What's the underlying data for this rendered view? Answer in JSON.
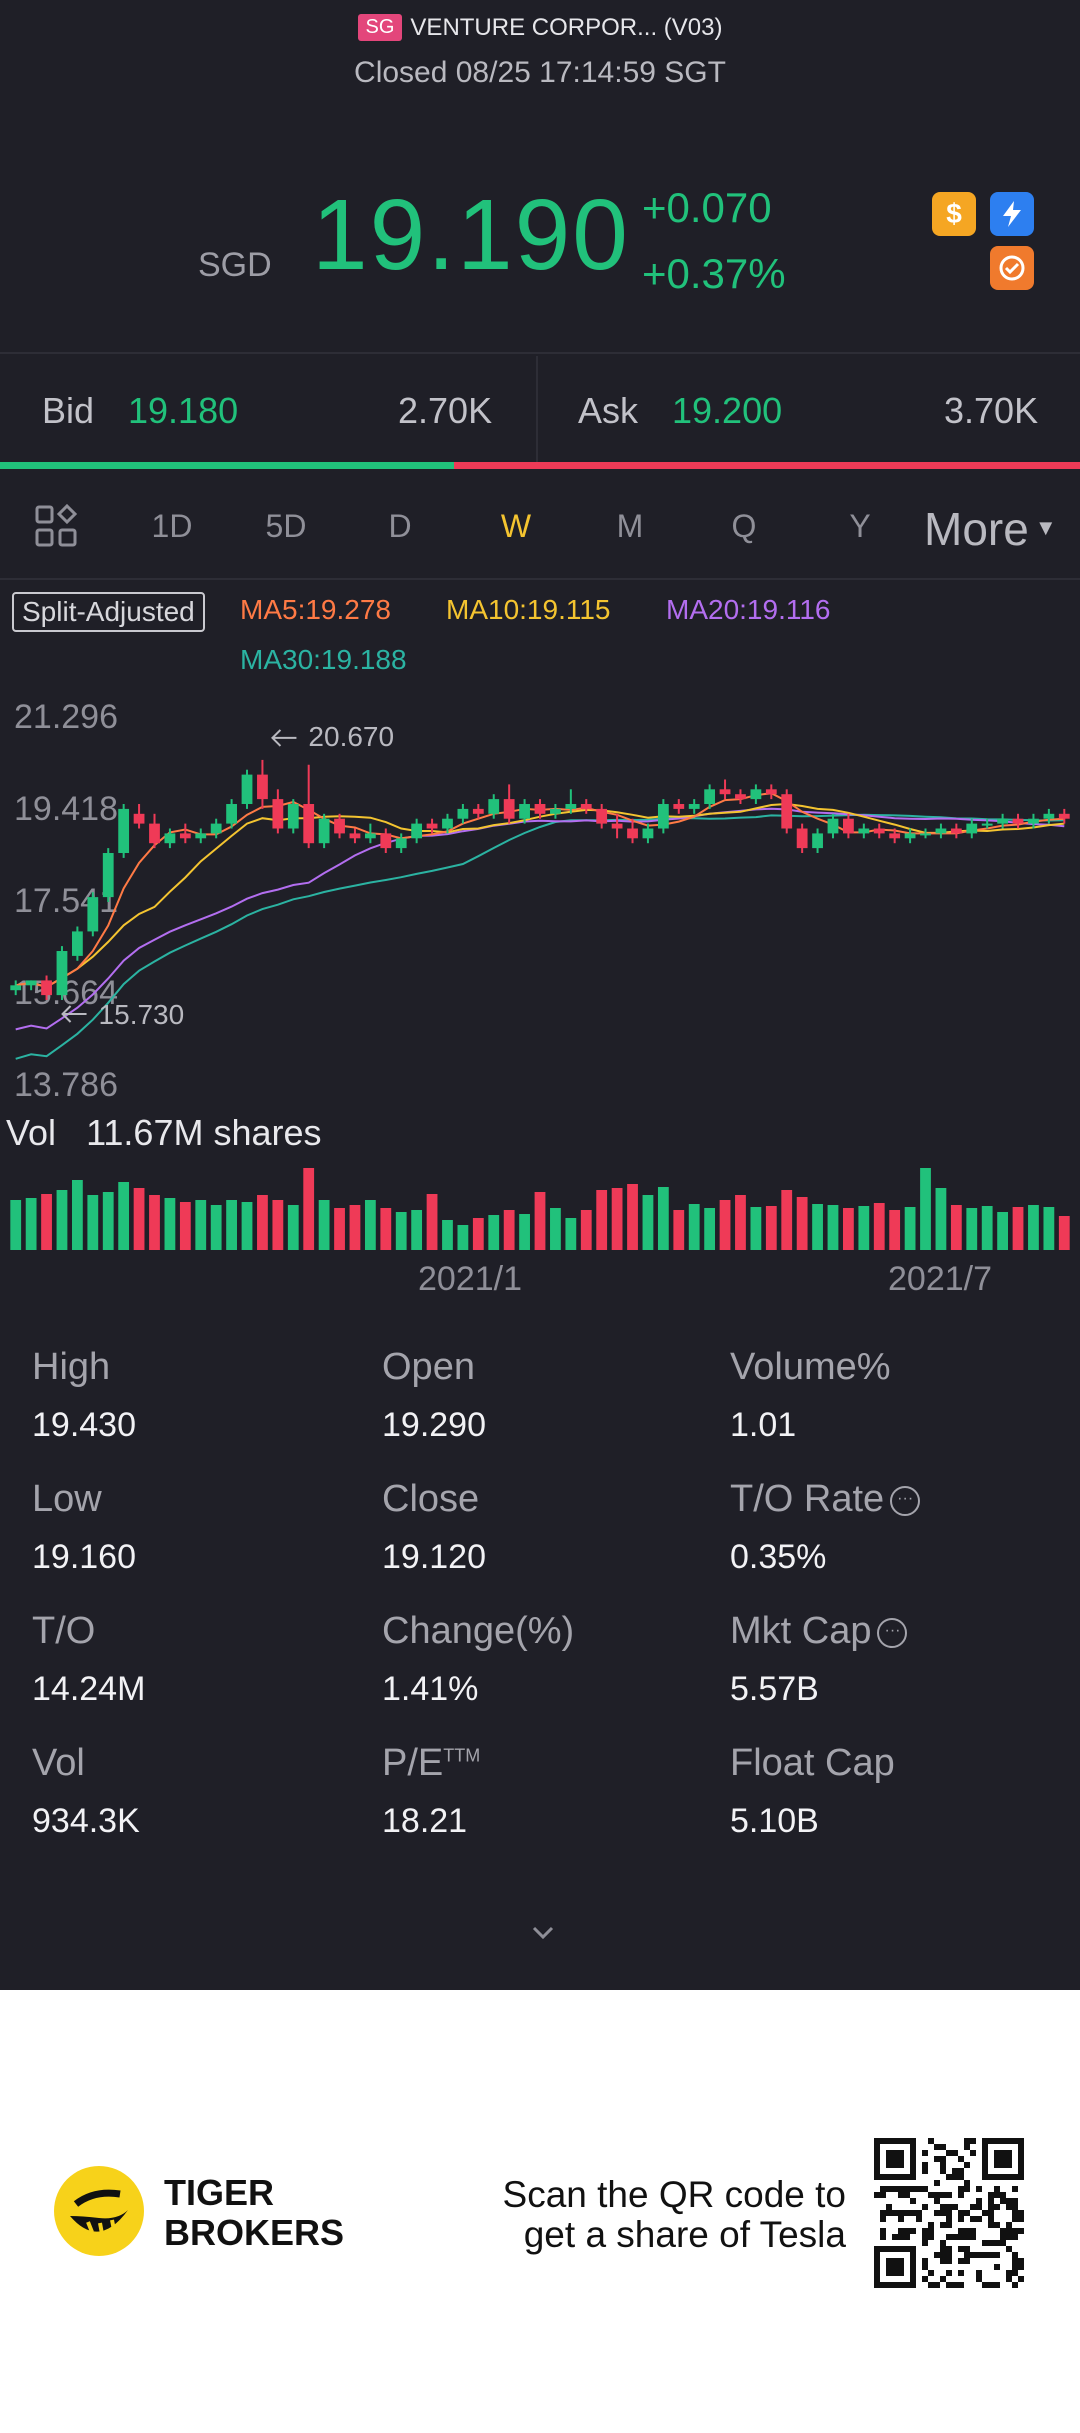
{
  "header": {
    "market_badge": "SG",
    "title": "VENTURE CORPOR... (V03)",
    "status": "Closed 08/25 17:14:59 SGT",
    "currency": "SGD",
    "price": "19.190",
    "change": "+0.070",
    "change_pct": "+0.37%",
    "icons": [
      "dollar-icon",
      "lightning-icon",
      "swap-icon"
    ]
  },
  "quote": {
    "bid_label": "Bid",
    "bid_price": "19.180",
    "bid_size": "2.70K",
    "ask_label": "Ask",
    "ask_price": "19.200",
    "ask_size": "3.70K",
    "bid_ratio": 0.42
  },
  "tabs": {
    "items": [
      "1D",
      "5D",
      "D",
      "W",
      "M",
      "Q",
      "Y"
    ],
    "active": "W",
    "more": "More"
  },
  "indicators": {
    "split": "Split-Adjusted",
    "ma5": "MA5:19.278",
    "ma10": "MA10:19.115",
    "ma20": "MA20:19.116",
    "ma30": "MA30:19.188"
  },
  "chart_data": {
    "type": "candlestick",
    "y_ticks": [
      "21.296",
      "19.418",
      "17.541",
      "15.664",
      "13.786"
    ],
    "ylim": [
      13.786,
      21.296
    ],
    "max_marker": "20.670",
    "min_marker": "15.730",
    "x_ticks": [
      "2021/1",
      "2021/7"
    ],
    "vol_label": "Vol",
    "vol_value": "11.67M shares",
    "colors": {
      "up": "#21c17b",
      "down": "#ef3a57",
      "ma5": "#ff7a45",
      "ma10": "#f4c430",
      "ma20": "#b36ef0",
      "ma30": "#2bb3a2"
    },
    "candles": [
      [
        15.7,
        15.9,
        15.6,
        15.8
      ],
      [
        15.8,
        15.9,
        15.7,
        15.9
      ],
      [
        15.9,
        16.0,
        15.5,
        15.6
      ],
      [
        15.6,
        16.6,
        15.5,
        16.5
      ],
      [
        16.4,
        17.0,
        16.3,
        16.9
      ],
      [
        16.9,
        17.7,
        16.8,
        17.6
      ],
      [
        17.6,
        18.6,
        17.5,
        18.5
      ],
      [
        18.5,
        19.5,
        18.4,
        19.4
      ],
      [
        19.3,
        19.5,
        19.0,
        19.1
      ],
      [
        19.1,
        19.3,
        18.6,
        18.7
      ],
      [
        18.7,
        19.0,
        18.6,
        18.9
      ],
      [
        18.9,
        19.1,
        18.7,
        18.8
      ],
      [
        18.8,
        19.0,
        18.7,
        18.9
      ],
      [
        18.9,
        19.2,
        18.8,
        19.1
      ],
      [
        19.1,
        19.6,
        19.0,
        19.5
      ],
      [
        19.5,
        20.2,
        19.4,
        20.1
      ],
      [
        20.1,
        20.4,
        19.4,
        19.6
      ],
      [
        19.6,
        19.8,
        18.9,
        19.0
      ],
      [
        19.0,
        19.6,
        18.9,
        19.5
      ],
      [
        19.5,
        20.3,
        18.6,
        18.7
      ],
      [
        18.7,
        19.3,
        18.6,
        19.2
      ],
      [
        19.2,
        19.3,
        18.8,
        18.9
      ],
      [
        18.9,
        19.0,
        18.7,
        18.8
      ],
      [
        18.8,
        19.1,
        18.7,
        18.9
      ],
      [
        18.9,
        19.0,
        18.5,
        18.6
      ],
      [
        18.6,
        18.9,
        18.5,
        18.8
      ],
      [
        18.8,
        19.2,
        18.7,
        19.1
      ],
      [
        19.1,
        19.2,
        18.9,
        19.0
      ],
      [
        19.0,
        19.3,
        18.9,
        19.2
      ],
      [
        19.2,
        19.5,
        19.1,
        19.4
      ],
      [
        19.4,
        19.5,
        19.2,
        19.3
      ],
      [
        19.3,
        19.7,
        19.2,
        19.6
      ],
      [
        19.6,
        19.9,
        19.1,
        19.2
      ],
      [
        19.2,
        19.6,
        19.1,
        19.5
      ],
      [
        19.5,
        19.6,
        19.2,
        19.3
      ],
      [
        19.3,
        19.5,
        19.2,
        19.4
      ],
      [
        19.4,
        19.8,
        19.3,
        19.5
      ],
      [
        19.5,
        19.6,
        19.3,
        19.4
      ],
      [
        19.4,
        19.5,
        19.0,
        19.1
      ],
      [
        19.1,
        19.3,
        18.8,
        19.0
      ],
      [
        19.0,
        19.2,
        18.7,
        18.8
      ],
      [
        18.8,
        19.1,
        18.7,
        19.0
      ],
      [
        19.0,
        19.6,
        18.9,
        19.5
      ],
      [
        19.5,
        19.6,
        19.3,
        19.4
      ],
      [
        19.4,
        19.6,
        19.3,
        19.5
      ],
      [
        19.5,
        19.9,
        19.4,
        19.8
      ],
      [
        19.8,
        20.0,
        19.6,
        19.7
      ],
      [
        19.7,
        19.8,
        19.5,
        19.6
      ],
      [
        19.6,
        19.9,
        19.5,
        19.8
      ],
      [
        19.8,
        19.9,
        19.6,
        19.7
      ],
      [
        19.7,
        19.8,
        18.9,
        19.0
      ],
      [
        19.0,
        19.1,
        18.5,
        18.6
      ],
      [
        18.6,
        19.0,
        18.5,
        18.9
      ],
      [
        18.9,
        19.3,
        18.8,
        19.2
      ],
      [
        19.2,
        19.3,
        18.8,
        18.9
      ],
      [
        18.9,
        19.1,
        18.8,
        19.0
      ],
      [
        19.0,
        19.1,
        18.8,
        18.9
      ],
      [
        18.9,
        19.0,
        18.7,
        18.8
      ],
      [
        18.8,
        19.0,
        18.7,
        18.9
      ],
      [
        18.9,
        19.0,
        18.8,
        18.9
      ],
      [
        18.9,
        19.1,
        18.8,
        19.0
      ],
      [
        19.0,
        19.1,
        18.8,
        18.9
      ],
      [
        18.9,
        19.2,
        18.8,
        19.1
      ],
      [
        19.1,
        19.2,
        19.0,
        19.1
      ],
      [
        19.1,
        19.3,
        19.0,
        19.2
      ],
      [
        19.2,
        19.3,
        19.0,
        19.1
      ],
      [
        19.1,
        19.3,
        19.0,
        19.2
      ],
      [
        19.2,
        19.4,
        19.1,
        19.3
      ],
      [
        19.3,
        19.4,
        19.1,
        19.2
      ]
    ],
    "volumes": [
      0.5,
      0.52,
      0.56,
      0.6,
      0.7,
      0.55,
      0.58,
      0.68,
      0.62,
      0.55,
      0.52,
      0.48,
      0.5,
      0.45,
      0.5,
      0.48,
      0.55,
      0.5,
      0.45,
      0.82,
      0.5,
      0.42,
      0.45,
      0.5,
      0.42,
      0.38,
      0.4,
      0.56,
      0.3,
      0.25,
      0.32,
      0.35,
      0.4,
      0.36,
      0.58,
      0.42,
      0.32,
      0.4,
      0.6,
      0.62,
      0.66,
      0.55,
      0.63,
      0.4,
      0.46,
      0.42,
      0.5,
      0.55,
      0.43,
      0.44,
      0.6,
      0.53,
      0.46,
      0.45,
      0.42,
      0.44,
      0.47,
      0.4,
      0.43,
      0.82,
      0.62,
      0.45,
      0.42,
      0.44,
      0.38,
      0.43,
      0.45,
      0.43,
      0.34
    ]
  },
  "stats": {
    "col1": [
      {
        "label": "High",
        "value": "19.430"
      },
      {
        "label": "Low",
        "value": "19.160"
      },
      {
        "label": "T/O",
        "value": "14.24M"
      },
      {
        "label": "Vol",
        "value": "934.3K"
      }
    ],
    "col2": [
      {
        "label": "Open",
        "value": "19.290"
      },
      {
        "label": "Close",
        "value": "19.120"
      },
      {
        "label": "Change(%)",
        "value": "1.41%"
      },
      {
        "label": "P/E",
        "sup": "TTM",
        "value": "18.21"
      }
    ],
    "col3": [
      {
        "label": "Volume%",
        "value": "1.01"
      },
      {
        "label": "T/O Rate",
        "value": "0.35%"
      },
      {
        "label": "Mkt Cap",
        "value": "5.57B"
      },
      {
        "label": "Float Cap",
        "value": "5.10B"
      }
    ]
  },
  "footer": {
    "brand_line1": "TIGER",
    "brand_line2": "BROKERS",
    "scan_line1": "Scan the QR code to",
    "scan_line2": "get a share of Tesla"
  }
}
